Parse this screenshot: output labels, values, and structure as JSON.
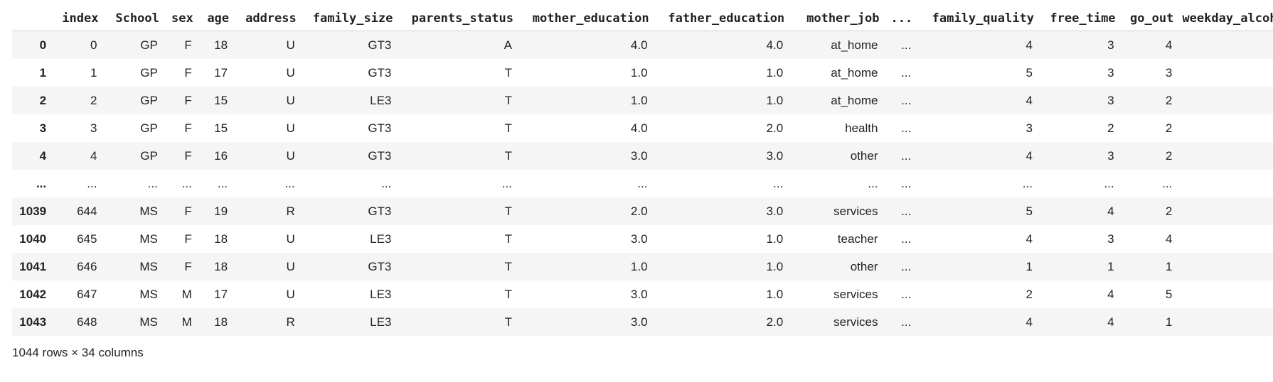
{
  "dataframe": {
    "index_header": "",
    "columns": [
      "index",
      "School",
      "sex",
      "age",
      "address",
      "family_size",
      "parents_status",
      "mother_education",
      "father_education",
      "mother_job",
      "...",
      "family_quality",
      "free_time",
      "go_out",
      "weekday_alcohol_"
    ],
    "rows": [
      {
        "idx": "0",
        "cells": [
          "0",
          "GP",
          "F",
          "18",
          "U",
          "GT3",
          "A",
          "4.0",
          "4.0",
          "at_home",
          "...",
          "4",
          "3",
          "4",
          ""
        ]
      },
      {
        "idx": "1",
        "cells": [
          "1",
          "GP",
          "F",
          "17",
          "U",
          "GT3",
          "T",
          "1.0",
          "1.0",
          "at_home",
          "...",
          "5",
          "3",
          "3",
          ""
        ]
      },
      {
        "idx": "2",
        "cells": [
          "2",
          "GP",
          "F",
          "15",
          "U",
          "LE3",
          "T",
          "1.0",
          "1.0",
          "at_home",
          "...",
          "4",
          "3",
          "2",
          ""
        ]
      },
      {
        "idx": "3",
        "cells": [
          "3",
          "GP",
          "F",
          "15",
          "U",
          "GT3",
          "T",
          "4.0",
          "2.0",
          "health",
          "...",
          "3",
          "2",
          "2",
          ""
        ]
      },
      {
        "idx": "4",
        "cells": [
          "4",
          "GP",
          "F",
          "16",
          "U",
          "GT3",
          "T",
          "3.0",
          "3.0",
          "other",
          "...",
          "4",
          "3",
          "2",
          ""
        ]
      },
      {
        "idx": "...",
        "cells": [
          "...",
          "...",
          "...",
          "...",
          "...",
          "...",
          "...",
          "...",
          "...",
          "...",
          "...",
          "...",
          "...",
          "...",
          ""
        ]
      },
      {
        "idx": "1039",
        "cells": [
          "644",
          "MS",
          "F",
          "19",
          "R",
          "GT3",
          "T",
          "2.0",
          "3.0",
          "services",
          "...",
          "5",
          "4",
          "2",
          ""
        ]
      },
      {
        "idx": "1040",
        "cells": [
          "645",
          "MS",
          "F",
          "18",
          "U",
          "LE3",
          "T",
          "3.0",
          "1.0",
          "teacher",
          "...",
          "4",
          "3",
          "4",
          ""
        ]
      },
      {
        "idx": "1041",
        "cells": [
          "646",
          "MS",
          "F",
          "18",
          "U",
          "GT3",
          "T",
          "1.0",
          "1.0",
          "other",
          "...",
          "1",
          "1",
          "1",
          ""
        ]
      },
      {
        "idx": "1042",
        "cells": [
          "647",
          "MS",
          "M",
          "17",
          "U",
          "LE3",
          "T",
          "3.0",
          "1.0",
          "services",
          "...",
          "2",
          "4",
          "5",
          ""
        ]
      },
      {
        "idx": "1043",
        "cells": [
          "648",
          "MS",
          "M",
          "18",
          "R",
          "LE3",
          "T",
          "3.0",
          "2.0",
          "services",
          "...",
          "4",
          "4",
          "1",
          ""
        ]
      }
    ],
    "summary": "1044 rows × 34 columns"
  }
}
